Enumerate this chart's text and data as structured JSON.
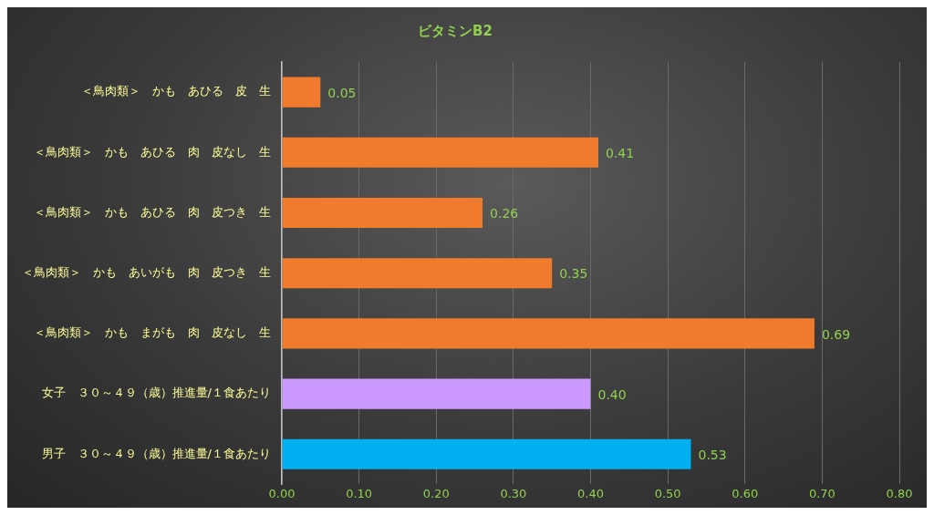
{
  "chart_data": {
    "type": "bar",
    "orientation": "horizontal",
    "title": "ビタミンB2",
    "categories": [
      "＜鳥肉類＞　かも　あひる　皮　生",
      "＜鳥肉類＞　かも　あひる　肉　皮なし　生",
      "＜鳥肉類＞　かも　あひる　肉　皮つき　生",
      "＜鳥肉類＞　かも　あいがも　肉　皮つき　生",
      "＜鳥肉類＞　かも　まがも　肉　皮なし　生",
      "女子　３０～４９（歳）推進量/１食あたり",
      "男子　３０～４９（歳）推進量/１食あたり"
    ],
    "values": [
      0.05,
      0.41,
      0.26,
      0.35,
      0.69,
      0.4,
      0.53
    ],
    "value_labels": [
      "0.05",
      "0.41",
      "0.26",
      "0.35",
      "0.69",
      "0.40",
      "0.53"
    ],
    "colors": [
      "#f07b2c",
      "#f07b2c",
      "#f07b2c",
      "#f07b2c",
      "#f07b2c",
      "#cc99ff",
      "#00b0f0"
    ],
    "xlim": [
      0,
      0.8
    ],
    "xticks": [
      {
        "value": 0,
        "label": "0.00"
      },
      {
        "value": 0.1,
        "label": "0.10"
      },
      {
        "value": 0.2,
        "label": "0.20"
      },
      {
        "value": 0.3,
        "label": "0.30"
      },
      {
        "value": 0.4,
        "label": "0.40"
      },
      {
        "value": 0.5,
        "label": "0.50"
      },
      {
        "value": 0.6,
        "label": "0.60"
      },
      {
        "value": 0.7,
        "label": "0.70"
      },
      {
        "value": 0.8,
        "label": "0.80"
      }
    ],
    "grid": "x",
    "legend": false
  }
}
